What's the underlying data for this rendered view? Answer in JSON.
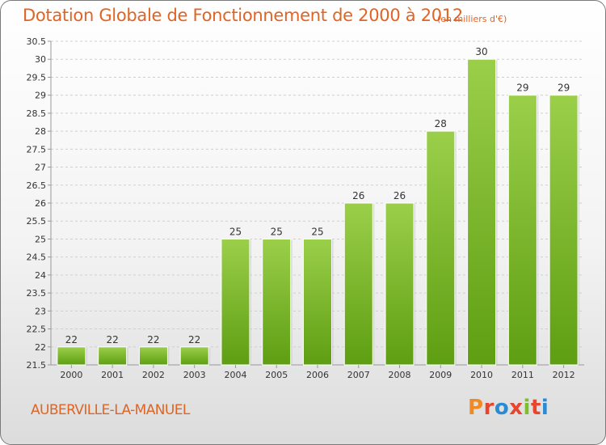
{
  "header": {
    "title": "Dotation Globale de Fonctionnement de 2000 à 2012",
    "unit": "(en milliers d'€)"
  },
  "footer": {
    "commune": "AUBERVILLE-LA-MANUEL",
    "logo_text": "Proxiti",
    "logo_colors": [
      "#f08a24",
      "#e8452c",
      "#2a8ad4",
      "#e8452c",
      "#7cbf2a",
      "#e8452c",
      "#2a8ad4"
    ]
  },
  "colors": {
    "bar_light": "#9bcf4a",
    "bar_dark": "#5e9e12",
    "grid": "#cfcfcf",
    "axis_text": "#333333",
    "title": "#e06424"
  },
  "chart_data": {
    "type": "bar",
    "title": "Dotation Globale de Fonctionnement de 2000 à 2012",
    "xlabel": "",
    "ylabel": "",
    "categories": [
      "2000",
      "2001",
      "2002",
      "2003",
      "2004",
      "2005",
      "2006",
      "2007",
      "2008",
      "2009",
      "2010",
      "2011",
      "2012"
    ],
    "values": [
      22,
      22,
      22,
      22,
      25,
      25,
      25,
      26,
      26,
      28,
      30,
      29,
      29
    ],
    "data_labels": [
      "22",
      "22",
      "22",
      "22",
      "25",
      "25",
      "25",
      "26",
      "26",
      "28",
      "30",
      "29",
      "29"
    ],
    "ylim": [
      21.5,
      30.5
    ],
    "yticks": [
      "21.5",
      "22",
      "22.5",
      "23",
      "23.5",
      "24",
      "24.5",
      "25",
      "25.5",
      "26",
      "26.5",
      "27",
      "27.5",
      "28",
      "28.5",
      "29",
      "29.5",
      "30",
      "30.5"
    ],
    "grid": true,
    "legend": "none"
  }
}
